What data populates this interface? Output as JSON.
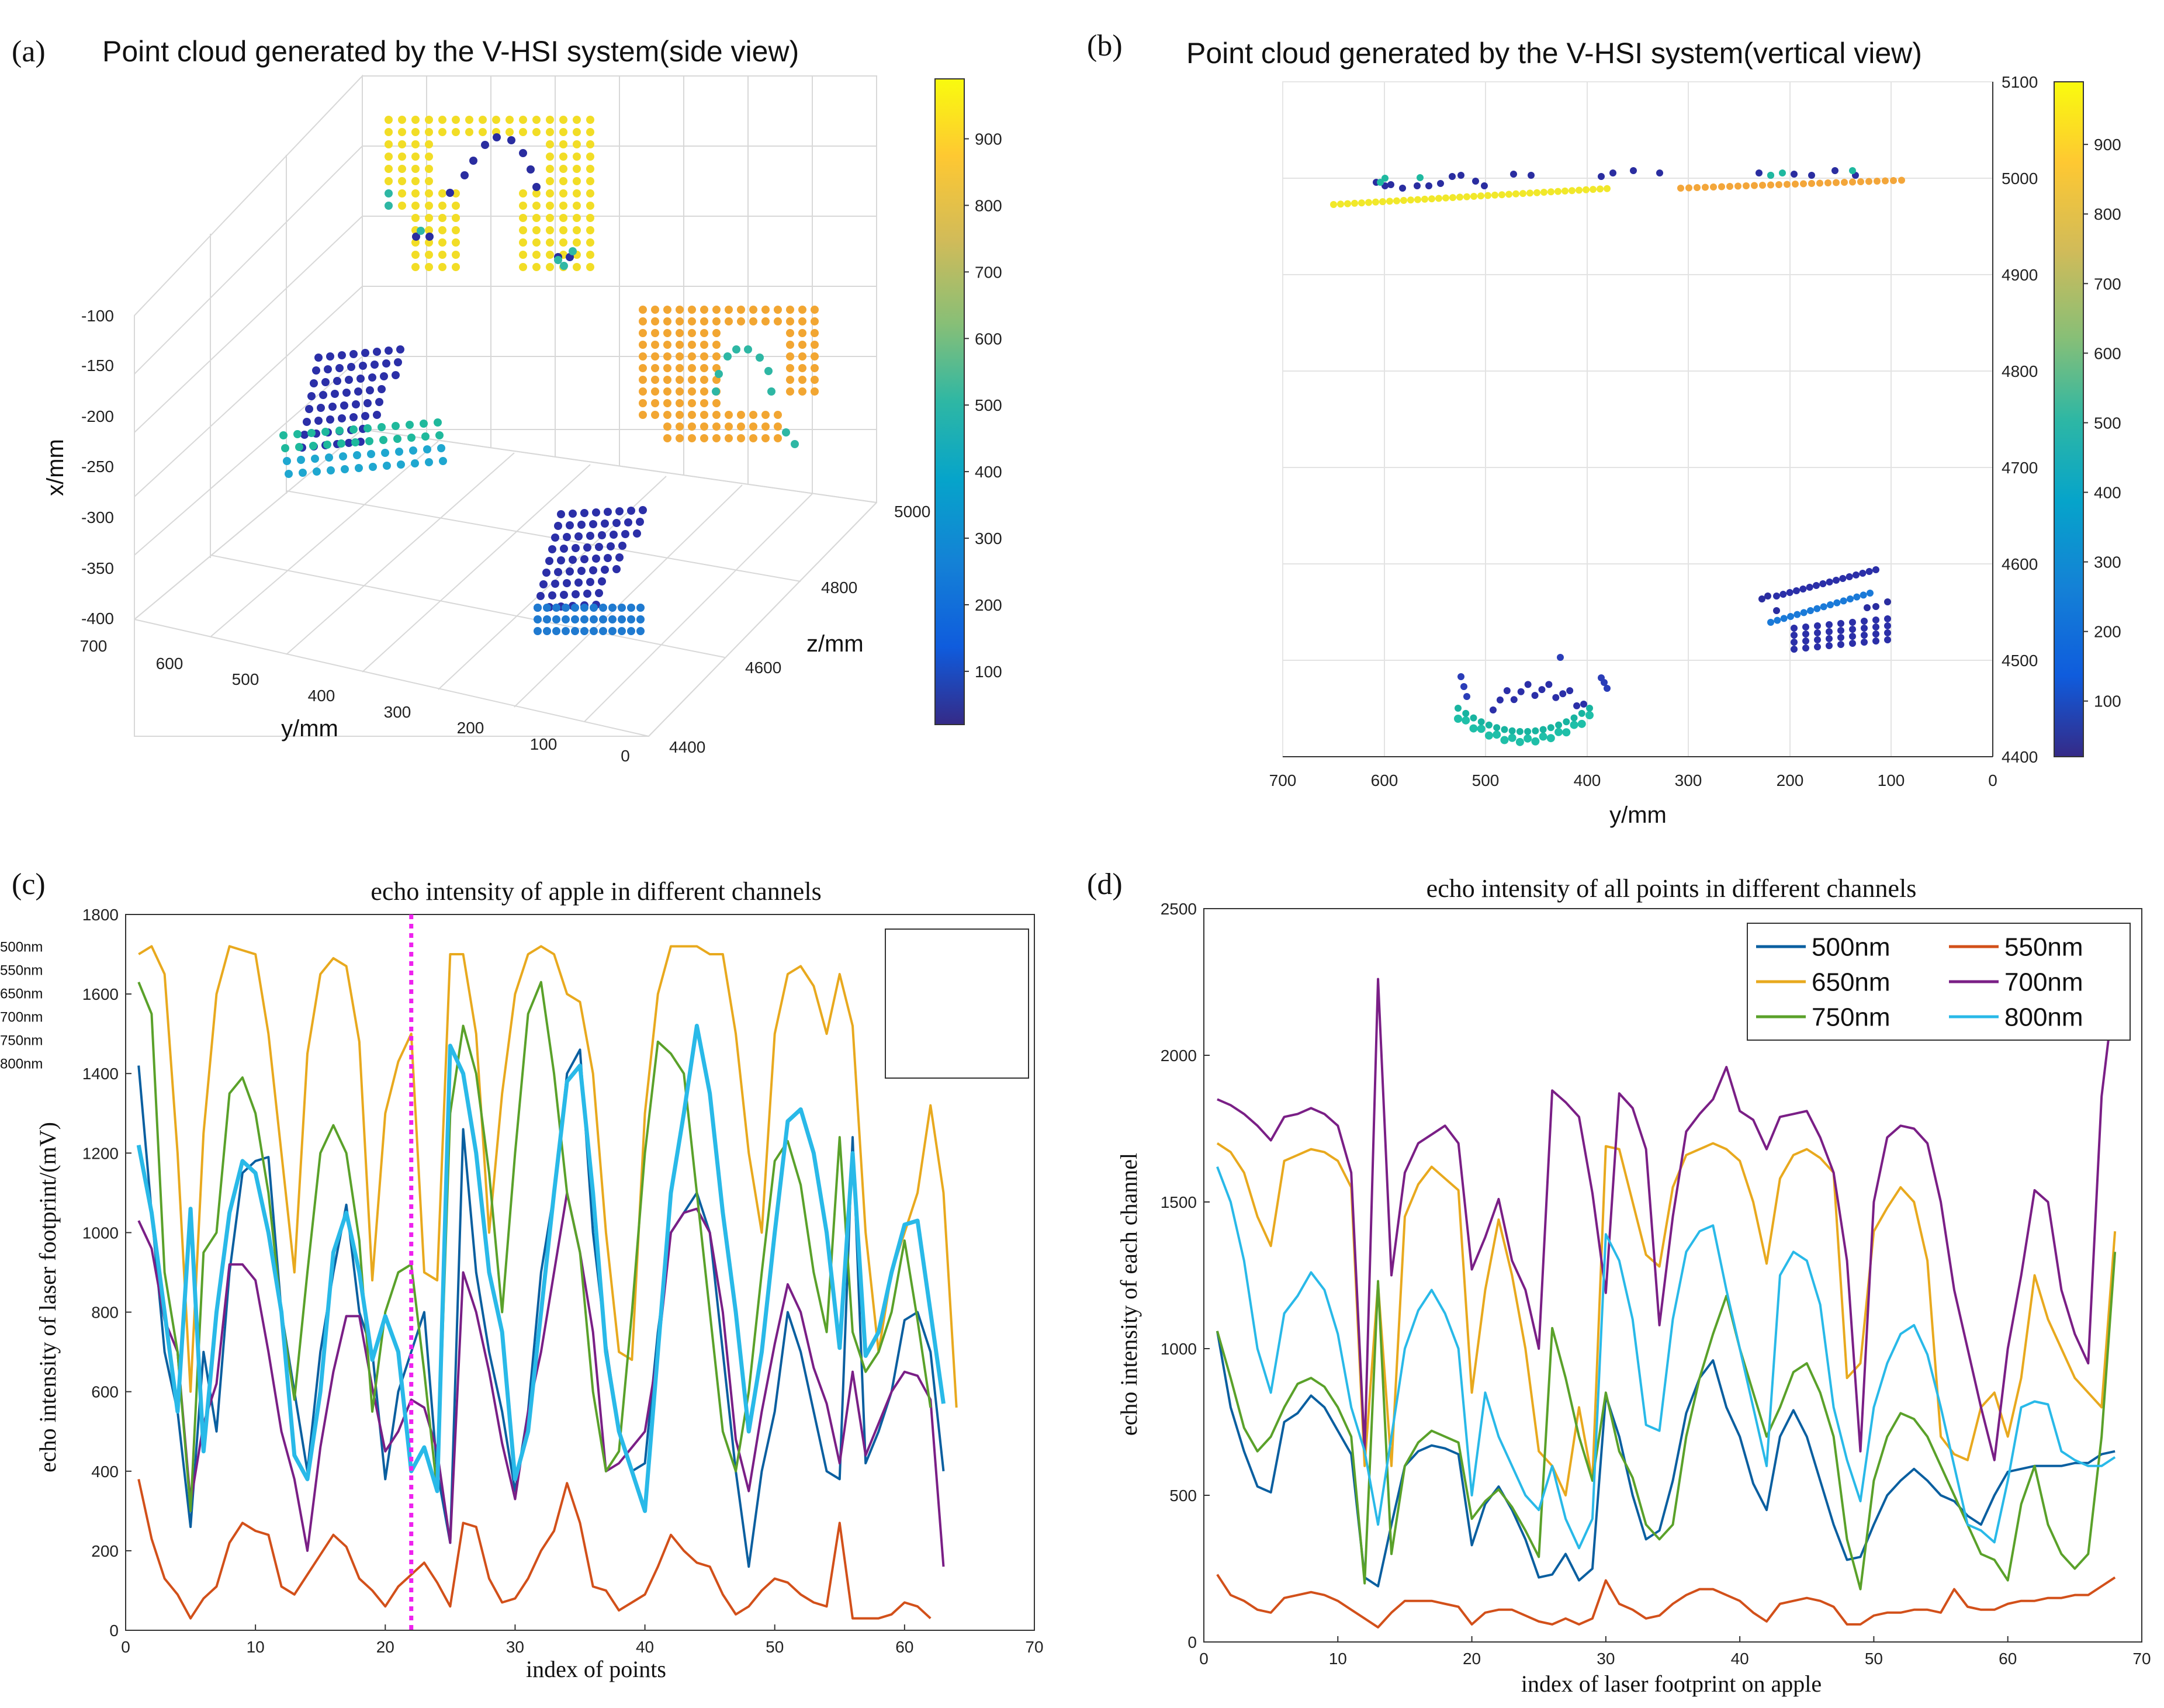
{
  "panels": {
    "a": {
      "label": "(a)",
      "title": "Point cloud generated by the V-HSI system(side view)",
      "xlabel": "y/mm",
      "ylabel": "x/mm",
      "zlabel": "z/mm",
      "x_ticks": [
        "700",
        "600",
        "500",
        "400",
        "300",
        "200",
        "100",
        "0"
      ],
      "y_ticks": [
        "-100",
        "-150",
        "-200",
        "-250",
        "-300",
        "-350",
        "-400"
      ],
      "z_ticks": [
        "5000",
        "4800",
        "4600",
        "4400"
      ],
      "colorbar_ticks": [
        "900",
        "800",
        "700",
        "600",
        "500",
        "400",
        "300",
        "200",
        "100"
      ]
    },
    "b": {
      "label": "(b)",
      "title": "Point cloud generated by the V-HSI system(vertical view)",
      "xlabel": "y/mm",
      "x_ticks": [
        "700",
        "600",
        "500",
        "400",
        "300",
        "200",
        "100",
        "0"
      ],
      "y_ticks": [
        "5100",
        "5000",
        "4900",
        "4800",
        "4700",
        "4600",
        "4500",
        "4400"
      ],
      "colorbar_ticks": [
        "900",
        "800",
        "700",
        "600",
        "500",
        "400",
        "300",
        "200",
        "100"
      ]
    },
    "c": {
      "label": "(c)"
    },
    "d": {
      "label": "(d)"
    }
  },
  "colors": {
    "c500": "#0a5fa0",
    "c550": "#d2501a",
    "c650": "#e8a91e",
    "c700": "#7a1f86",
    "c750": "#5aa12a",
    "c800": "#29b9e8",
    "marker": "#ee22ee"
  },
  "chart_data": [
    {
      "type": "line",
      "title": "echo intensity of apple in different channels",
      "xlabel": "index of points",
      "ylabel": "echo intensity of laser footprint/(mV)",
      "xlim": [
        0,
        70
      ],
      "ylim": [
        0,
        1800
      ],
      "x_ticks": [
        "0",
        "10",
        "20",
        "30",
        "40",
        "50",
        "60",
        "70"
      ],
      "y_ticks": [
        "0",
        "200",
        "400",
        "600",
        "800",
        "1000",
        "1200",
        "1400",
        "1600",
        "1800"
      ],
      "marker_x": 22,
      "legend_position": "top-right",
      "series": [
        {
          "name": "500nm",
          "color": "#0a5fa0",
          "width": 4,
          "values": [
            1420,
            1050,
            700,
            550,
            260,
            700,
            500,
            900,
            1150,
            1180,
            1190,
            800,
            600,
            400,
            700,
            900,
            1070,
            800,
            700,
            380,
            600,
            700,
            800,
            400,
            220,
            1260,
            900,
            700,
            550,
            350,
            550,
            900,
            1100,
            1400,
            1460,
            1000,
            720,
            500,
            400,
            420,
            750,
            1000,
            1050,
            1100,
            1000,
            700,
            400,
            160,
            400,
            550,
            800,
            700,
            550,
            400,
            380,
            1240,
            420,
            500,
            600,
            780,
            800,
            700,
            400
          ]
        },
        {
          "name": "550nm",
          "color": "#d2501a",
          "width": 4,
          "values": [
            380,
            230,
            130,
            90,
            30,
            80,
            110,
            220,
            270,
            250,
            240,
            110,
            90,
            140,
            190,
            240,
            210,
            130,
            100,
            60,
            110,
            140,
            170,
            120,
            60,
            270,
            260,
            130,
            70,
            80,
            130,
            200,
            250,
            370,
            270,
            110,
            100,
            50,
            70,
            90,
            160,
            240,
            200,
            170,
            160,
            90,
            40,
            60,
            100,
            130,
            120,
            90,
            70,
            60,
            270,
            30,
            30,
            30,
            40,
            70,
            60,
            30
          ]
        },
        {
          "name": "650nm",
          "color": "#e8a91e",
          "width": 4,
          "values": [
            1700,
            1720,
            1650,
            1200,
            600,
            1250,
            1600,
            1720,
            1710,
            1700,
            1500,
            1200,
            900,
            1450,
            1650,
            1690,
            1670,
            1480,
            880,
            1300,
            1430,
            1500,
            900,
            880,
            1700,
            1700,
            1500,
            1000,
            1350,
            1600,
            1700,
            1720,
            1700,
            1600,
            1580,
            1400,
            1000,
            700,
            680,
            1300,
            1600,
            1720,
            1720,
            1720,
            1700,
            1700,
            1500,
            1200,
            1000,
            1500,
            1650,
            1670,
            1620,
            1500,
            1650,
            1520,
            1000,
            700,
            900,
            1000,
            1100,
            1320,
            1100,
            560
          ]
        },
        {
          "name": "700nm",
          "color": "#7a1f86",
          "width": 4,
          "values": [
            1030,
            960,
            780,
            700,
            320,
            520,
            620,
            920,
            920,
            880,
            700,
            500,
            380,
            200,
            460,
            650,
            790,
            790,
            610,
            450,
            500,
            580,
            560,
            450,
            220,
            900,
            800,
            650,
            470,
            330,
            550,
            700,
            900,
            1100,
            950,
            750,
            400,
            420,
            460,
            500,
            700,
            1000,
            1050,
            1060,
            1000,
            800,
            480,
            350,
            550,
            720,
            870,
            800,
            660,
            570,
            420,
            650,
            440,
            520,
            600,
            650,
            640,
            580,
            160
          ]
        },
        {
          "name": "750nm",
          "color": "#5aa12a",
          "width": 4,
          "values": [
            1630,
            1550,
            900,
            700,
            300,
            950,
            1000,
            1350,
            1390,
            1300,
            1100,
            800,
            580,
            900,
            1200,
            1270,
            1200,
            980,
            550,
            800,
            900,
            920,
            650,
            350,
            1300,
            1520,
            1400,
            1150,
            800,
            1200,
            1550,
            1630,
            1400,
            1100,
            950,
            600,
            400,
            450,
            800,
            1200,
            1480,
            1450,
            1400,
            1100,
            800,
            500,
            400,
            600,
            900,
            1180,
            1230,
            1120,
            900,
            750,
            1240,
            750,
            650,
            700,
            800,
            980,
            780,
            560
          ]
        },
        {
          "name": "800nm",
          "color": "#29b9e8",
          "width": 7,
          "values": [
            1220,
            1050,
            800,
            550,
            1060,
            450,
            800,
            1050,
            1180,
            1150,
            1000,
            800,
            440,
            380,
            600,
            950,
            1050,
            900,
            680,
            790,
            700,
            400,
            460,
            350,
            1470,
            1400,
            1200,
            900,
            750,
            380,
            500,
            800,
            1100,
            1380,
            1420,
            1100,
            700,
            500,
            400,
            300,
            700,
            1100,
            1300,
            1520,
            1350,
            1050,
            800,
            500,
            700,
            1000,
            1280,
            1310,
            1200,
            1000,
            710,
            1200,
            690,
            750,
            900,
            1020,
            1030,
            800,
            570
          ]
        }
      ]
    },
    {
      "type": "line",
      "title": "echo intensity of all points in different channels",
      "xlabel": "index of laser footprint on apple",
      "ylabel": "echo intensity of each channel",
      "xlim": [
        0,
        70
      ],
      "ylim": [
        0,
        2500
      ],
      "x_ticks": [
        "0",
        "10",
        "20",
        "30",
        "40",
        "50",
        "60",
        "70"
      ],
      "y_ticks": [
        "0",
        "500",
        "1000",
        "1500",
        "2000",
        "2500"
      ],
      "legend_position": "top-right",
      "series": [
        {
          "name": "500nm",
          "color": "#0a5fa0",
          "width": 4,
          "values": [
            1060,
            800,
            650,
            530,
            510,
            750,
            780,
            840,
            800,
            720,
            640,
            220,
            190,
            400,
            600,
            650,
            670,
            660,
            640,
            330,
            470,
            530,
            450,
            350,
            220,
            230,
            300,
            210,
            250,
            840,
            700,
            500,
            350,
            380,
            550,
            780,
            900,
            960,
            800,
            700,
            540,
            450,
            700,
            790,
            700,
            550,
            400,
            280,
            290,
            400,
            500,
            550,
            590,
            550,
            500,
            480,
            430,
            400,
            500,
            580,
            590,
            600,
            600,
            600,
            610,
            610,
            640,
            650
          ]
        },
        {
          "name": "550nm",
          "color": "#d2501a",
          "width": 4,
          "values": [
            230,
            160,
            140,
            110,
            100,
            150,
            160,
            170,
            160,
            140,
            110,
            80,
            50,
            100,
            140,
            140,
            140,
            130,
            120,
            60,
            100,
            110,
            110,
            90,
            70,
            60,
            80,
            60,
            80,
            210,
            130,
            110,
            80,
            90,
            130,
            160,
            180,
            180,
            160,
            140,
            100,
            70,
            130,
            140,
            150,
            140,
            120,
            60,
            60,
            90,
            100,
            100,
            110,
            110,
            100,
            180,
            120,
            110,
            110,
            130,
            140,
            140,
            150,
            150,
            160,
            160,
            190,
            220
          ]
        },
        {
          "name": "650nm",
          "color": "#e8a91e",
          "width": 4,
          "values": [
            1700,
            1670,
            1600,
            1450,
            1350,
            1640,
            1660,
            1680,
            1670,
            1640,
            1550,
            600,
            1220,
            600,
            1450,
            1560,
            1620,
            1580,
            1540,
            850,
            1200,
            1440,
            1250,
            1000,
            650,
            600,
            500,
            800,
            550,
            1690,
            1680,
            1500,
            1320,
            1280,
            1550,
            1660,
            1680,
            1700,
            1680,
            1640,
            1500,
            1290,
            1580,
            1660,
            1680,
            1650,
            1600,
            900,
            950,
            1400,
            1480,
            1550,
            1500,
            1300,
            700,
            640,
            620,
            800,
            850,
            700,
            900,
            1250,
            1100,
            1000,
            900,
            850,
            800,
            1400
          ]
        },
        {
          "name": "700nm",
          "color": "#7a1f86",
          "width": 4,
          "values": [
            1850,
            1830,
            1800,
            1760,
            1710,
            1790,
            1800,
            1820,
            1800,
            1760,
            1600,
            650,
            2260,
            1250,
            1600,
            1700,
            1730,
            1760,
            1700,
            1270,
            1380,
            1510,
            1300,
            1200,
            1000,
            1880,
            1840,
            1790,
            1530,
            1190,
            1870,
            1820,
            1680,
            1080,
            1450,
            1740,
            1800,
            1850,
            1960,
            1810,
            1780,
            1680,
            1790,
            1800,
            1810,
            1720,
            1600,
            1300,
            650,
            1500,
            1720,
            1760,
            1750,
            1700,
            1500,
            1200,
            1000,
            800,
            620,
            1000,
            1250,
            1540,
            1500,
            1200,
            1050,
            950,
            1860,
            2240
          ]
        },
        {
          "name": "750nm",
          "color": "#5aa12a",
          "width": 4,
          "values": [
            1060,
            900,
            730,
            650,
            700,
            800,
            880,
            900,
            870,
            800,
            700,
            200,
            1230,
            300,
            600,
            680,
            720,
            700,
            680,
            420,
            480,
            520,
            460,
            380,
            290,
            1070,
            900,
            700,
            550,
            850,
            650,
            560,
            400,
            350,
            400,
            700,
            900,
            1050,
            1180,
            1000,
            850,
            700,
            800,
            920,
            950,
            850,
            700,
            350,
            180,
            550,
            700,
            780,
            760,
            700,
            600,
            500,
            400,
            300,
            280,
            210,
            470,
            600,
            400,
            300,
            250,
            300,
            700,
            1330
          ]
        },
        {
          "name": "800nm",
          "color": "#29b9e8",
          "width": 4,
          "values": [
            1620,
            1500,
            1300,
            1000,
            850,
            1120,
            1180,
            1260,
            1200,
            1050,
            800,
            650,
            400,
            700,
            1000,
            1130,
            1200,
            1120,
            1000,
            500,
            850,
            700,
            600,
            500,
            450,
            600,
            420,
            320,
            420,
            1390,
            1300,
            1100,
            740,
            720,
            1100,
            1330,
            1400,
            1420,
            1200,
            1000,
            800,
            600,
            1250,
            1330,
            1300,
            1150,
            800,
            620,
            480,
            800,
            950,
            1050,
            1080,
            980,
            800,
            600,
            400,
            380,
            340,
            550,
            800,
            820,
            810,
            650,
            620,
            600,
            600,
            630
          ]
        }
      ]
    }
  ]
}
